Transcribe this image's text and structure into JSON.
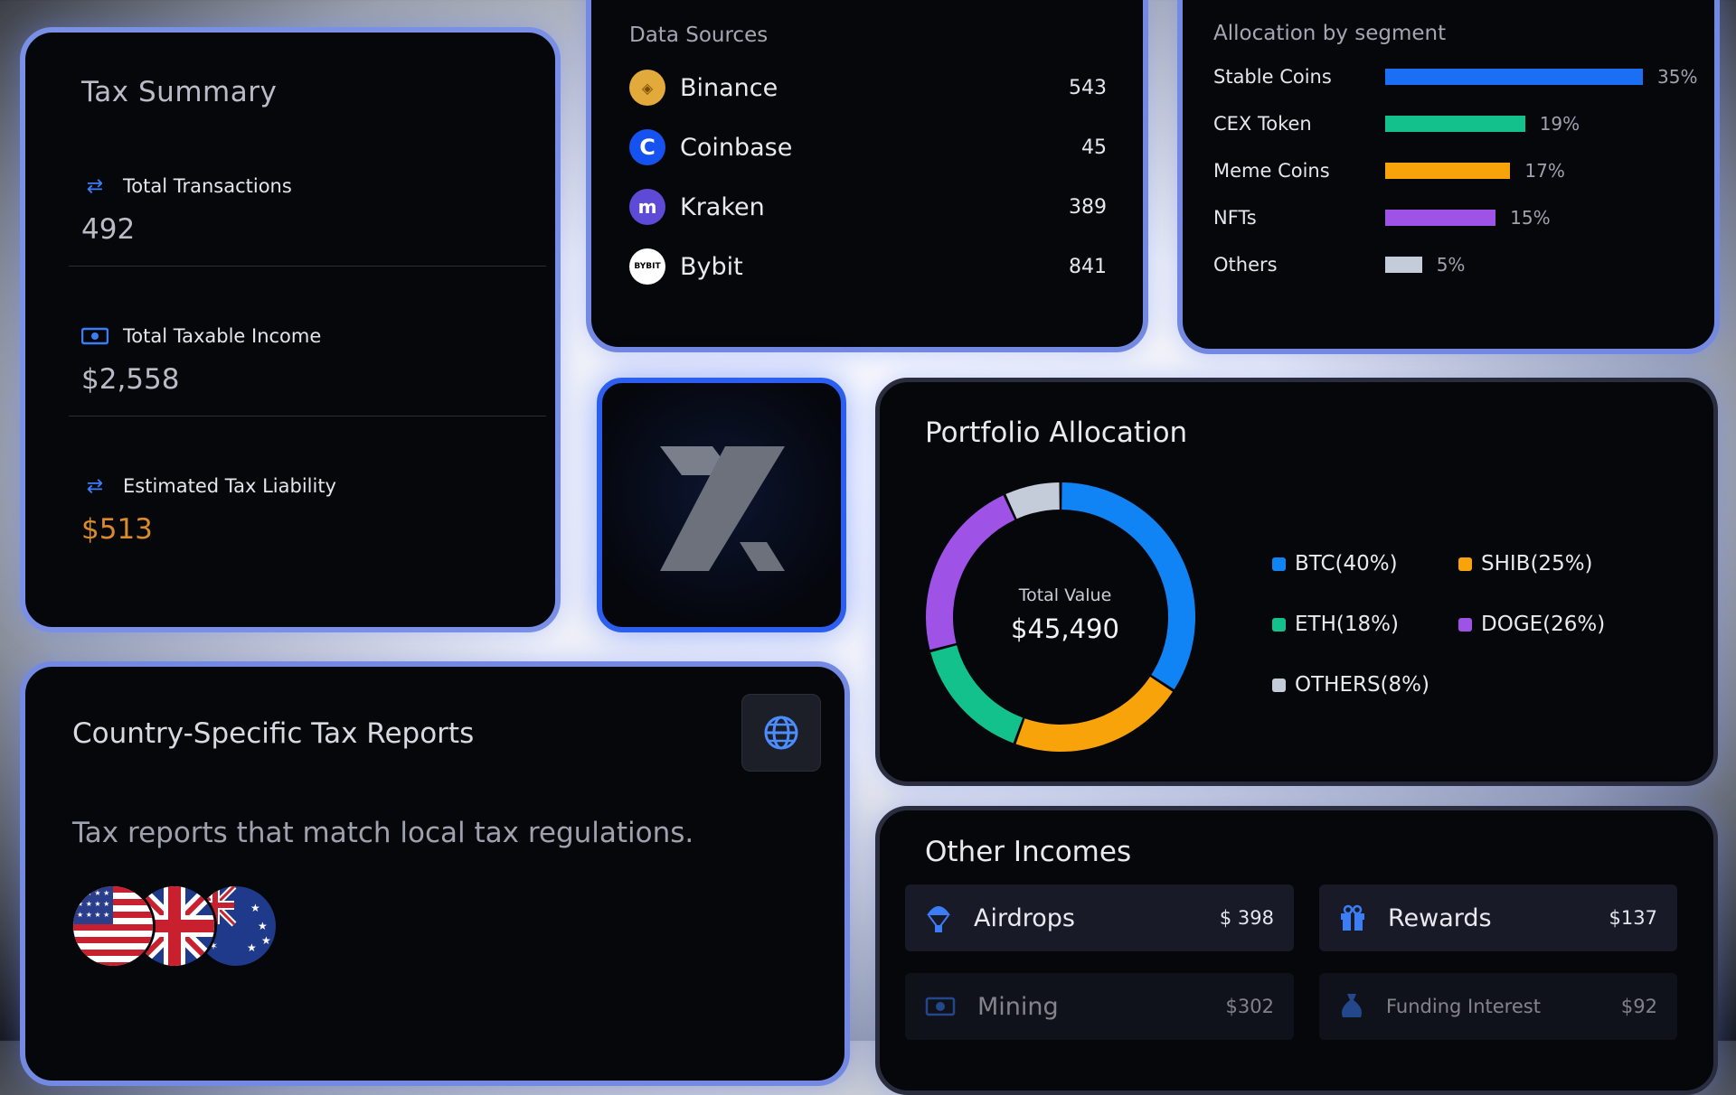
{
  "tax_summary": {
    "title": "Tax Summary",
    "rows": [
      {
        "label": "Total Transactions",
        "value": "492",
        "icon": "swap-arrows-icon"
      },
      {
        "label": "Total Taxable Income",
        "value": "$2,558",
        "icon": "cash-icon"
      },
      {
        "label": "Estimated Tax Liability",
        "value": "$513",
        "icon": "swap-arrows-icon"
      }
    ]
  },
  "data_sources": {
    "title": "Data Sources",
    "items": [
      {
        "name": "Binance",
        "count": "543",
        "color": "#e2a93b",
        "glyph": "◈"
      },
      {
        "name": "Coinbase",
        "count": "45",
        "color": "#1652f0",
        "glyph": "C"
      },
      {
        "name": "Kraken",
        "count": "389",
        "color": "#5d4ad6",
        "glyph": "m"
      },
      {
        "name": "Bybit",
        "count": "841",
        "color": "#ffffff",
        "glyph": "BYBIT"
      }
    ]
  },
  "allocation_by_segment": {
    "title": "Allocation by segment",
    "segments": [
      {
        "label": "Stable Coins",
        "pct": 35,
        "pct_label": "35%",
        "color": "#1a6ff5"
      },
      {
        "label": "CEX Token",
        "pct": 19,
        "pct_label": "19%",
        "color": "#12c18b"
      },
      {
        "label": "Meme Coins",
        "pct": 17,
        "pct_label": "17%",
        "color": "#f9a30b"
      },
      {
        "label": "NFTs",
        "pct": 15,
        "pct_label": "15%",
        "color": "#9e52e6"
      },
      {
        "label": "Others",
        "pct": 5,
        "pct_label": "5%",
        "color": "#c4ccd9"
      }
    ]
  },
  "portfolio": {
    "title": "Portfolio Allocation",
    "center_label": "Total Value",
    "center_value": "$45,490",
    "slices": [
      {
        "label": "BTC(40%)",
        "pct": 40,
        "color": "#1184f5"
      },
      {
        "label": "SHIB(25%)",
        "pct": 25,
        "color": "#f9a30b"
      },
      {
        "label": "ETH(18%)",
        "pct": 18,
        "color": "#12c18b"
      },
      {
        "label": "DOGE(26%)",
        "pct": 26,
        "color": "#9e52e6"
      },
      {
        "label": "OTHERS(8%)",
        "pct": 8,
        "color": "#c4ccd9"
      }
    ]
  },
  "country_reports": {
    "title": "Country-Specific Tax Reports",
    "subtitle": "Tax reports that match local tax regulations.",
    "globe_icon": "globe-icon"
  },
  "other_incomes": {
    "title": "Other Incomes",
    "items": [
      {
        "name": "Airdrops",
        "amount": "$ 398",
        "icon": "parachute-icon"
      },
      {
        "name": "Rewards",
        "amount": "$137",
        "icon": "gift-icon"
      },
      {
        "name": "Mining",
        "amount": "$302",
        "icon": "mining-icon"
      },
      {
        "name": "Funding Interest",
        "amount": "$92",
        "icon": "money-bag-icon"
      }
    ]
  }
}
